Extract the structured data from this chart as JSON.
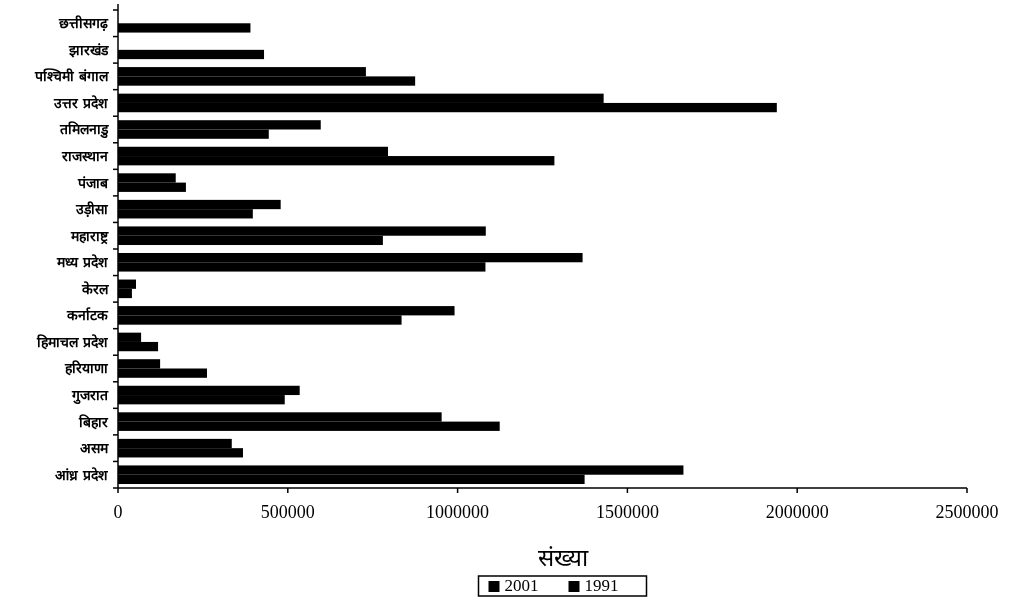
{
  "chart_data": {
    "type": "bar",
    "orientation": "horizontal",
    "xlabel": "संख्या",
    "categories": [
      "छत्तीसगढ़",
      "झारखंड",
      "पश्चिमी बंगाल",
      "उत्तर प्रदेश",
      "तमिलनाडु",
      "राजस्थान",
      "पंजाब",
      "उड़ीसा",
      "महाराष्ट्र",
      "मध्य प्रदेश",
      "केरल",
      "कर्नाटक",
      "हिमाचल प्रदेश",
      "हरियाणा",
      "गुजरात",
      "बिहार",
      "असम",
      "आंध्र प्रदेश"
    ],
    "series": [
      {
        "name": "2001",
        "color": "#000000",
        "values": [
          390000,
          430000,
          875000,
          1940000,
          444000,
          1285000,
          200000,
          397000,
          780000,
          1082000,
          41000,
          835000,
          118000,
          262000,
          491000,
          1124000,
          368000,
          1374000
        ]
      },
      {
        "name": "1991",
        "color": "#000000",
        "values": [
          null,
          null,
          730000,
          1430000,
          597000,
          795000,
          170000,
          479000,
          1083000,
          1368000,
          53000,
          991000,
          68000,
          124000,
          535000,
          953000,
          335000,
          1665000
        ]
      }
    ],
    "xlim": [
      0,
      2500000
    ],
    "xticks": [
      0,
      500000,
      1000000,
      1500000,
      2000000,
      2500000
    ],
    "grid": false,
    "legend": "bottom"
  }
}
